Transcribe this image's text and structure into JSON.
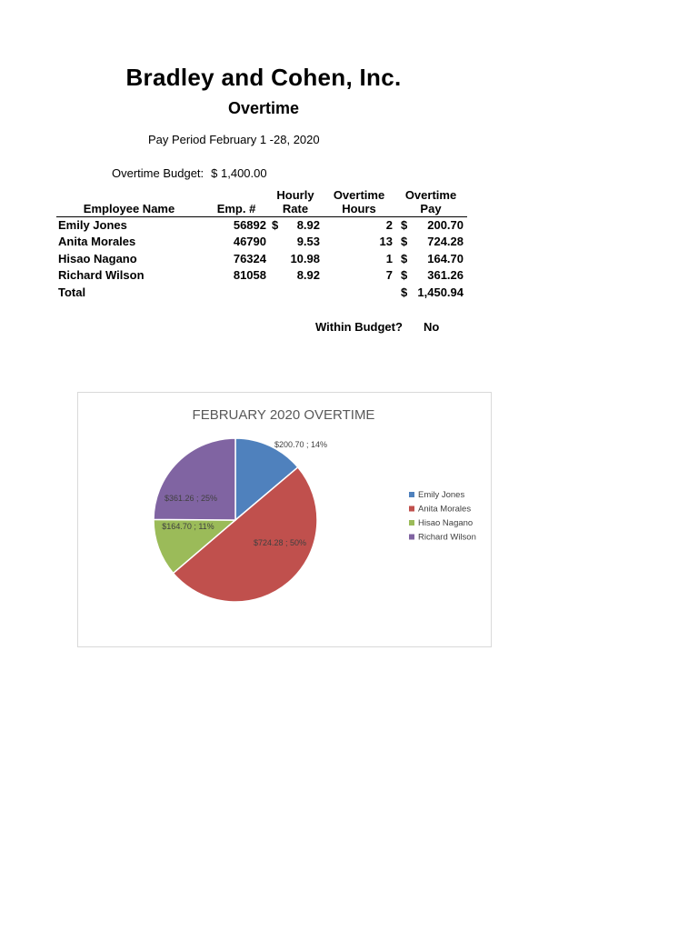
{
  "header": {
    "company": "Bradley and Cohen, Inc.",
    "subtitle": "Overtime",
    "pay_period": "Pay Period February 1 -28, 2020",
    "budget_label": "Overtime Budget:",
    "budget_value": "$ 1,400.00"
  },
  "table": {
    "columns": {
      "name": "Employee Name",
      "emp": "Emp. #",
      "rate_1": "Hourly",
      "rate_2": "Rate",
      "hours_1": "Overtime",
      "hours_2": "Hours",
      "pay_1": "Overtime",
      "pay_2": "Pay"
    },
    "rows": [
      {
        "name": "Emily Jones",
        "emp": "56892",
        "rate_cur": "$",
        "rate": "8.92",
        "hours": "2",
        "pay_cur": "$",
        "pay": "200.70"
      },
      {
        "name": "Anita Morales",
        "emp": "46790",
        "rate_cur": "",
        "rate": "9.53",
        "hours": "13",
        "pay_cur": "$",
        "pay": "724.28"
      },
      {
        "name": "Hisao Nagano",
        "emp": "76324",
        "rate_cur": "",
        "rate": "10.98",
        "hours": "1",
        "pay_cur": "$",
        "pay": "164.70"
      },
      {
        "name": "Richard Wilson",
        "emp": "81058",
        "rate_cur": "",
        "rate": "8.92",
        "hours": "7",
        "pay_cur": "$",
        "pay": "361.26"
      }
    ],
    "total_label": "Total",
    "total_cur": "$",
    "total_value": "1,450.94",
    "within_label": "Within Budget?",
    "within_value": "No"
  },
  "chart_data": {
    "type": "pie",
    "title": "FEBRUARY 2020 OVERTIME",
    "legend_position": "right",
    "slices": [
      {
        "name": "Emily Jones",
        "value": 200.7,
        "label": "$200.70 ; 14%",
        "color": "#4f81bd"
      },
      {
        "name": "Anita Morales",
        "value": 724.28,
        "label": "$724.28 ; 50%",
        "color": "#c0504d"
      },
      {
        "name": "Hisao Nagano",
        "value": 164.7,
        "label": "$164.70 ; 11%",
        "color": "#9bbb59"
      },
      {
        "name": "Richard Wilson",
        "value": 361.26,
        "label": "$361.26 ; 25%",
        "color": "#8064a2"
      }
    ]
  }
}
